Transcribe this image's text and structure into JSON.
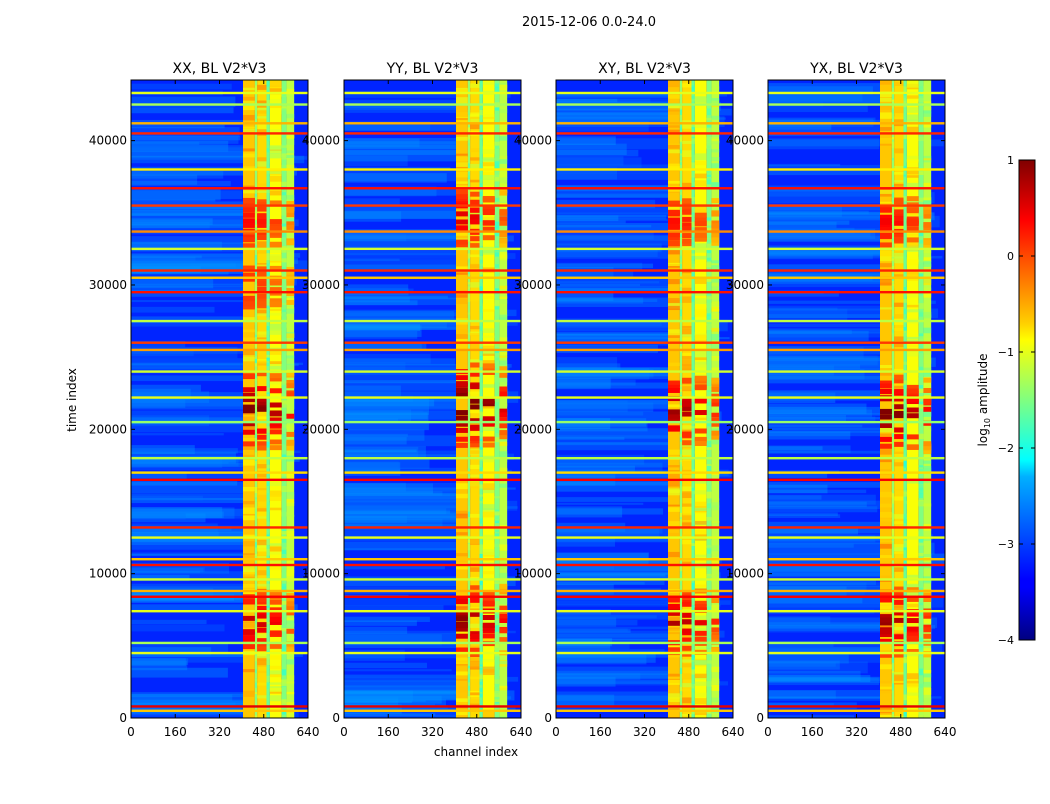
{
  "figure": {
    "suptitle": "2015-12-06 0.0-24.0"
  },
  "chart_data": {
    "type": "heatmap",
    "panels": [
      {
        "title": "XX, BL V2*V3",
        "hotspots": [
          [
            21500,
            2.2
          ],
          [
            6800,
            1.5
          ],
          [
            34500,
            0.8
          ],
          [
            30000,
            0.4
          ]
        ]
      },
      {
        "title": "YY, BL V2*V3",
        "hotspots": [
          [
            21800,
            2.6
          ],
          [
            6900,
            2.0
          ],
          [
            34800,
            1.2
          ]
        ]
      },
      {
        "title": "XY, BL V2*V3",
        "hotspots": [
          [
            21500,
            1.8
          ],
          [
            6800,
            1.6
          ],
          [
            34500,
            0.7
          ]
        ]
      },
      {
        "title": "YX, BL V2*V3",
        "hotspots": [
          [
            21200,
            2.2
          ],
          [
            6800,
            1.8
          ],
          [
            34500,
            0.9
          ]
        ]
      }
    ],
    "xlabel": "channel index",
    "ylabel": "time index",
    "xlim": [
      0,
      640
    ],
    "ylim": [
      0,
      44200
    ],
    "xticks": [
      0,
      160,
      320,
      480,
      640
    ],
    "yticks": [
      0,
      10000,
      20000,
      30000,
      40000
    ],
    "colormap": "jet",
    "colorbar": {
      "label": "log10 amplitude",
      "min": -4,
      "max": 1,
      "ticks": [
        1,
        0,
        -1,
        -2,
        -3,
        -4
      ],
      "ticklabels": [
        "1",
        "0",
        "−1",
        "−2",
        "−3",
        "−4"
      ]
    },
    "bands": [
      {
        "x0": 405,
        "x1": 448,
        "level": -0.6
      },
      {
        "x0": 448,
        "x1": 456,
        "level": -1.4
      },
      {
        "x0": 456,
        "x1": 490,
        "level": -0.7
      },
      {
        "x0": 490,
        "x1": 502,
        "level": -1.6
      },
      {
        "x0": 502,
        "x1": 545,
        "level": -0.9
      },
      {
        "x0": 545,
        "x1": 562,
        "level": -1.5
      },
      {
        "x0": 562,
        "x1": 590,
        "level": -1.2
      }
    ],
    "background_level": -3.2,
    "rfi_lines": [
      {
        "t": 500,
        "level": -0.6
      },
      {
        "t": 800,
        "level": 0.5
      },
      {
        "t": 4500,
        "level": -1.0
      },
      {
        "t": 5200,
        "level": -1.3
      },
      {
        "t": 7400,
        "level": -1.0
      },
      {
        "t": 8400,
        "level": 0.4
      },
      {
        "t": 8800,
        "level": -0.5
      },
      {
        "t": 9600,
        "level": -1.1
      },
      {
        "t": 10600,
        "level": 0.3
      },
      {
        "t": 11000,
        "level": -0.6
      },
      {
        "t": 12500,
        "level": -1.0
      },
      {
        "t": 13200,
        "level": 0.2
      },
      {
        "t": 16500,
        "level": 0.4
      },
      {
        "t": 17000,
        "level": -0.7
      },
      {
        "t": 18000,
        "level": -1.2
      },
      {
        "t": 20500,
        "level": -1.4
      },
      {
        "t": 22200,
        "level": -1.0
      },
      {
        "t": 24000,
        "level": -1.1
      },
      {
        "t": 25500,
        "level": -0.4
      },
      {
        "t": 26000,
        "level": 0.1
      },
      {
        "t": 27500,
        "level": -1.2
      },
      {
        "t": 29500,
        "level": 0.3
      },
      {
        "t": 30500,
        "level": -0.6
      },
      {
        "t": 31000,
        "level": 0.2
      },
      {
        "t": 32500,
        "level": -1.1
      },
      {
        "t": 33700,
        "level": -0.3
      },
      {
        "t": 35500,
        "level": 0.1
      },
      {
        "t": 36700,
        "level": 0.3
      },
      {
        "t": 38000,
        "level": -0.8
      },
      {
        "t": 40500,
        "level": 0.2
      },
      {
        "t": 41200,
        "level": -0.5
      },
      {
        "t": 42500,
        "level": -1.3
      },
      {
        "t": 43300,
        "level": -1.0
      }
    ]
  }
}
